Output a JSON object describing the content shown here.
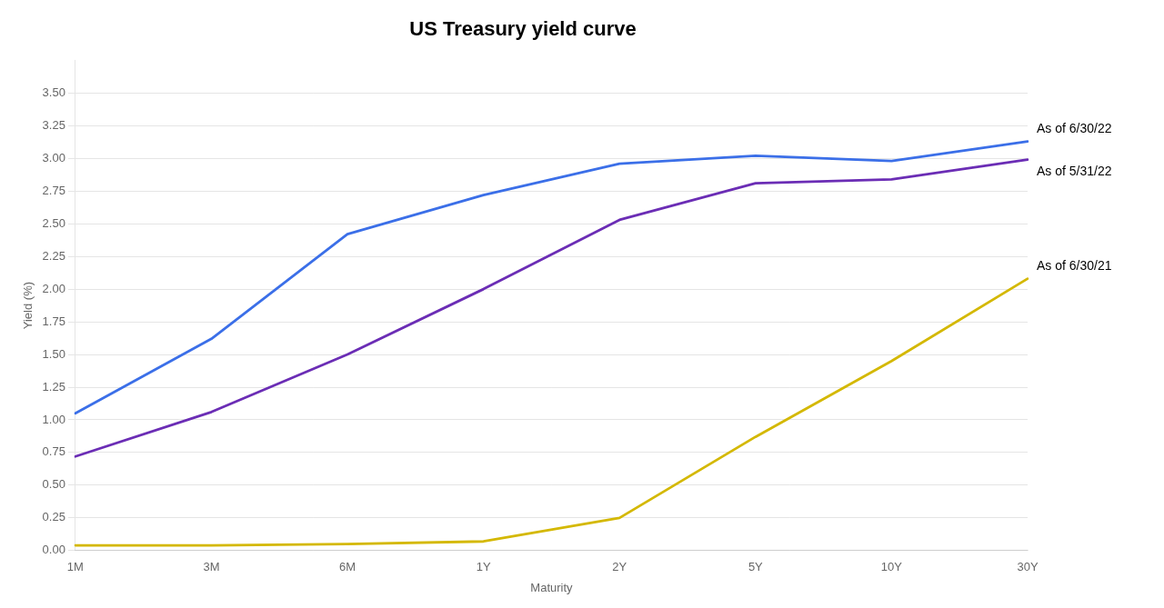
{
  "chart_data": {
    "type": "line",
    "title": "US Treasury yield curve",
    "xlabel": "Maturity",
    "ylabel": "Yield (%)",
    "categories": [
      "1M",
      "3M",
      "6M",
      "1Y",
      "2Y",
      "5Y",
      "10Y",
      "30Y"
    ],
    "series": [
      {
        "name": "As of 6/30/22",
        "color": "#3B6FE8",
        "values": [
          1.05,
          1.62,
          2.42,
          2.72,
          2.96,
          3.02,
          2.98,
          3.13
        ]
      },
      {
        "name": "As of 5/31/22",
        "color": "#6B2DB5",
        "values": [
          0.72,
          1.06,
          1.5,
          2.0,
          2.53,
          2.81,
          2.84,
          2.99
        ]
      },
      {
        "name": "As of 6/30/21",
        "color": "#D4B800",
        "values": [
          0.04,
          0.04,
          0.05,
          0.07,
          0.25,
          0.87,
          1.45,
          2.08
        ]
      }
    ],
    "ylim": [
      0.0,
      3.75
    ],
    "yticks": [
      {
        "value": 0.0,
        "label": "0.00"
      },
      {
        "value": 0.25,
        "label": "0.25"
      },
      {
        "value": 0.5,
        "label": "0.50"
      },
      {
        "value": 0.75,
        "label": "0.75"
      },
      {
        "value": 1.0,
        "label": "1.00"
      },
      {
        "value": 1.25,
        "label": "1.25"
      },
      {
        "value": 1.5,
        "label": "1.50"
      },
      {
        "value": 1.75,
        "label": "1.75"
      },
      {
        "value": 2.0,
        "label": "2.00"
      },
      {
        "value": 2.25,
        "label": "2.25"
      },
      {
        "value": 2.5,
        "label": "2.50"
      },
      {
        "value": 2.75,
        "label": "2.75"
      },
      {
        "value": 3.0,
        "label": "3.00"
      },
      {
        "value": 3.25,
        "label": "3.25"
      },
      {
        "value": 3.5,
        "label": "3.50"
      }
    ],
    "grid": true
  }
}
